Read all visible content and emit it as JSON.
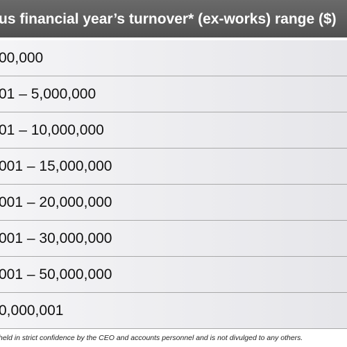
{
  "table": {
    "header": "us financial year’s turnover* (ex-works) range ($)",
    "rows": [
      "00,000",
      "01 – 5,000,000",
      "01 – 10,000,000",
      "001 – 15,000,000",
      "001 – 20,000,000",
      "001 – 30,000,000",
      "001 – 50,000,000",
      "0,000,001"
    ]
  },
  "footnote": "held in strict confidence by the CEO and accounts personnel and is not divulged to any others."
}
